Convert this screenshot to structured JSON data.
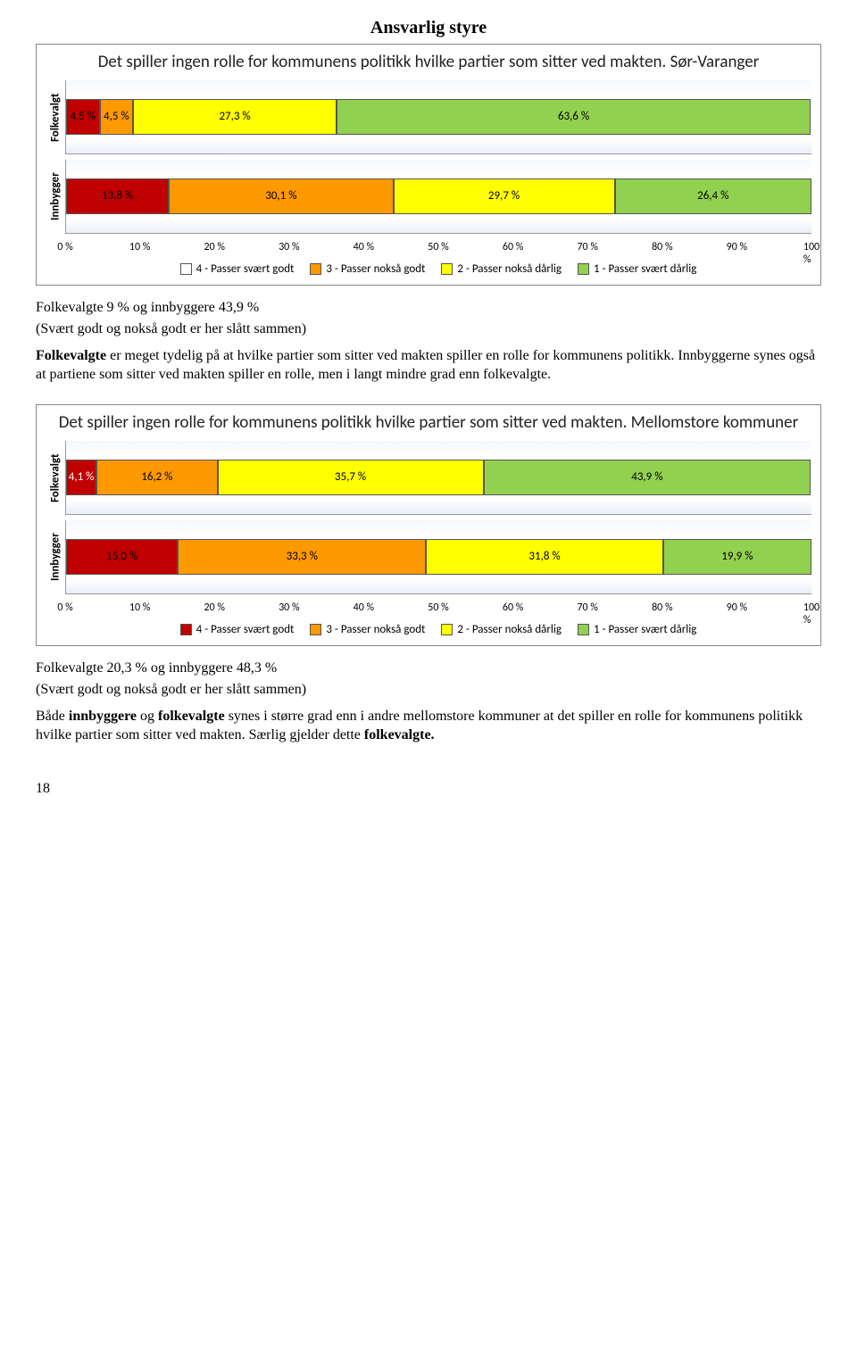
{
  "page_number": "18",
  "main_title": "Ansvarlig styre",
  "colors": {
    "c4": "#c00000",
    "c3": "#ff9900",
    "c2": "#ffff00",
    "c1": "#92d050",
    "grid": "#cccccc",
    "seg_border": "#555555"
  },
  "legend": {
    "l4": "4 - Passer svært godt",
    "l3": "3 - Passer nokså godt",
    "l2": "2 - Passer nokså dårlig",
    "l1": "1 - Passer svært dårlig"
  },
  "xaxis": {
    "ticks": [
      "0 %",
      "10 %",
      "20 %",
      "30 %",
      "40 %",
      "50 %",
      "60 %",
      "70 %",
      "80 %",
      "90 %",
      "100 %"
    ]
  },
  "chart1": {
    "title": "Det spiller ingen rolle for kommunens politikk hvilke partier som sitter ved makten. Sør-Varanger",
    "rows": [
      {
        "label": "Folkevalgt",
        "segs": [
          {
            "v": 4.5,
            "t": "4,5 %",
            "color": "#c00000",
            "fg": "#000"
          },
          {
            "v": 4.5,
            "t": "4,5 %",
            "color": "#ff9900",
            "fg": "#000"
          },
          {
            "v": 27.3,
            "t": "27,3 %",
            "color": "#ffff00",
            "fg": "#000"
          },
          {
            "v": 63.6,
            "t": "63,6 %",
            "color": "#92d050",
            "fg": "#000"
          }
        ]
      },
      {
        "label": "Innbygger",
        "segs": [
          {
            "v": 13.8,
            "t": "13,8 %",
            "color": "#c00000",
            "fg": "#000"
          },
          {
            "v": 30.1,
            "t": "30,1 %",
            "color": "#ff9900",
            "fg": "#000"
          },
          {
            "v": 29.7,
            "t": "29,7 %",
            "color": "#ffff00",
            "fg": "#000"
          },
          {
            "v": 26.4,
            "t": "26,4 %",
            "color": "#92d050",
            "fg": "#000"
          }
        ]
      }
    ]
  },
  "text1_sum": "Folkevalgte 9 % og innbyggere 43,9 %",
  "text1_note": "(Svært godt og nokså godt er her slått sammen)",
  "para1_html": "Folkevalgte er meget tydelig på at hvilke partier som sitter ved makten spiller en rolle for kommunens politikk. Innbyggerne synes også at partiene som sitter ved makten spiller en rolle, men i langt mindre grad enn folkevalgte.",
  "para1_bold": "Folkevalgte",
  "chart2": {
    "title": "Det spiller ingen rolle for kommunens politikk hvilke partier som sitter ved makten. Mellomstore kommuner",
    "rows": [
      {
        "label": "Folkevalgt",
        "segs": [
          {
            "v": 4.1,
            "t": "4,1 %",
            "color": "#c00000",
            "fg": "#fff"
          },
          {
            "v": 16.2,
            "t": "16,2 %",
            "color": "#ff9900",
            "fg": "#000"
          },
          {
            "v": 35.7,
            "t": "35,7 %",
            "color": "#ffff00",
            "fg": "#000"
          },
          {
            "v": 43.9,
            "t": "43,9 %",
            "color": "#92d050",
            "fg": "#000"
          }
        ]
      },
      {
        "label": "Innbygger",
        "segs": [
          {
            "v": 15.0,
            "t": "15,0 %",
            "color": "#c00000",
            "fg": "#000"
          },
          {
            "v": 33.3,
            "t": "33,3 %",
            "color": "#ff9900",
            "fg": "#000"
          },
          {
            "v": 31.8,
            "t": "31,8 %",
            "color": "#ffff00",
            "fg": "#000"
          },
          {
            "v": 19.9,
            "t": "19,9 %",
            "color": "#92d050",
            "fg": "#000"
          }
        ]
      }
    ]
  },
  "text2_sum": "Folkevalgte 20,3 % og innbyggere 48,3 %",
  "text2_note": "(Svært godt og nokså godt er her slått sammen)",
  "para2_plain_pre": "Både ",
  "para2_bold1": "innbyggere",
  "para2_mid": " og ",
  "para2_bold2": "folkevalgte",
  "para2_rest": " synes i større grad enn i andre mellomstore kommuner at det spiller en rolle for kommunens politikk hvilke partier som sitter ved makten. Særlig gjelder dette ",
  "para2_bold3": "folkevalgte."
}
